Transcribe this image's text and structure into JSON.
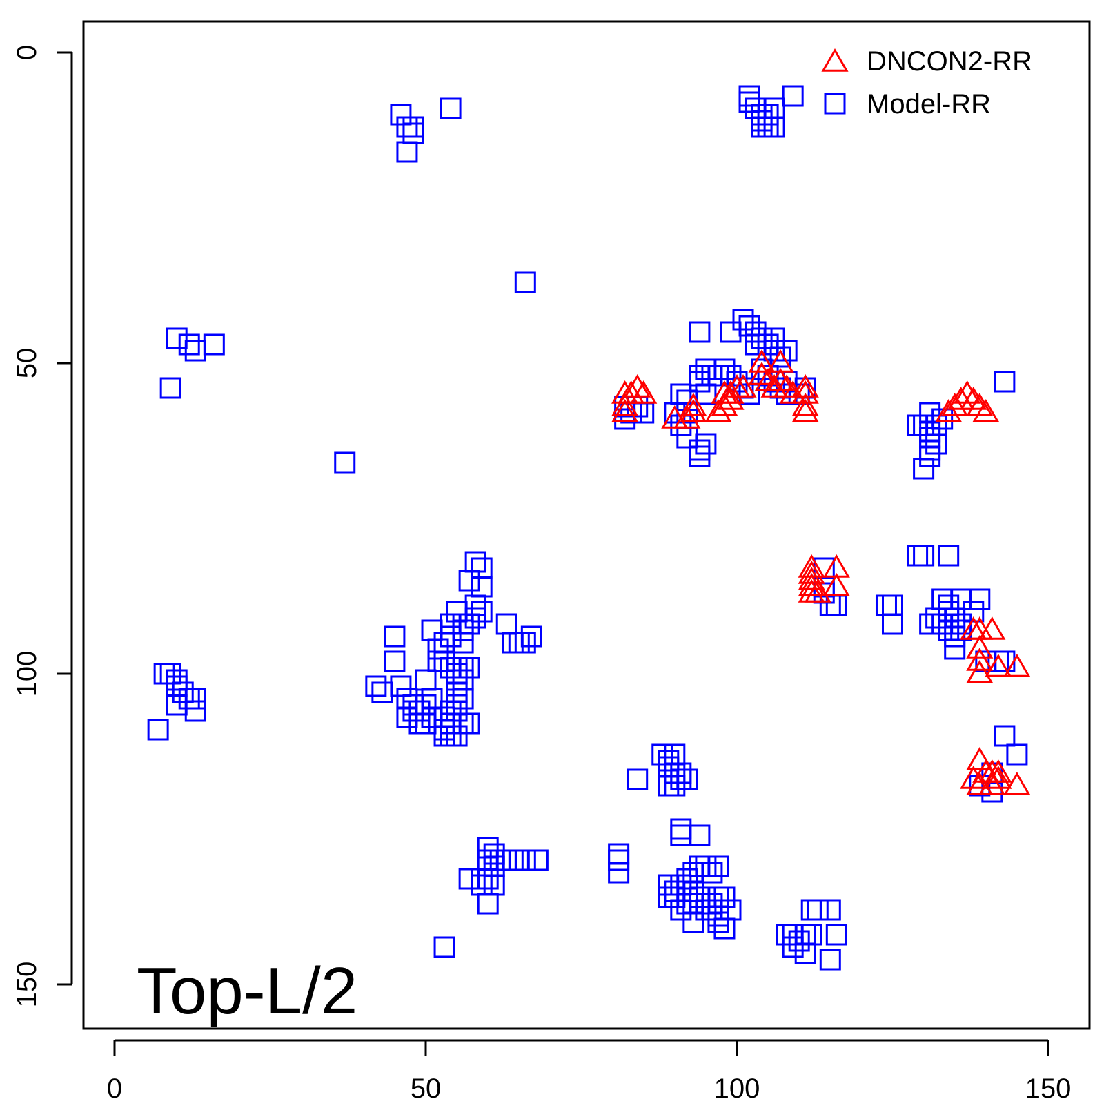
{
  "chart_data": {
    "type": "scatter",
    "title": "",
    "xlabel": "",
    "ylabel": "",
    "xlim": [
      -5,
      157
    ],
    "ylim": [
      -5,
      157
    ],
    "y_axis_inverted": true,
    "grid": false,
    "legend_position": "top-right",
    "x_ticks": [
      "0",
      "50",
      "100",
      "150"
    ],
    "y_ticks": [
      "0",
      "50",
      "100",
      "150"
    ],
    "annotation": "Top-L/2",
    "colors": {
      "dncon": "#ff0000",
      "model": "#0000ff"
    },
    "series": [
      {
        "name": "DNCON2-RR",
        "marker": "triangle",
        "color": "#ff0000",
        "points": [
          [
            82,
            55
          ],
          [
            83,
            55
          ],
          [
            84,
            54
          ],
          [
            82,
            57
          ],
          [
            85,
            55
          ],
          [
            82,
            58
          ],
          [
            90,
            59
          ],
          [
            93,
            57
          ],
          [
            93,
            58
          ],
          [
            92,
            59
          ],
          [
            97,
            58
          ],
          [
            98,
            57
          ],
          [
            99,
            56
          ],
          [
            100,
            54
          ],
          [
            99,
            55
          ],
          [
            101,
            54
          ],
          [
            98,
            55
          ],
          [
            104,
            50
          ],
          [
            104,
            52
          ],
          [
            105,
            53
          ],
          [
            106,
            54
          ],
          [
            107,
            50
          ],
          [
            107,
            53
          ],
          [
            108,
            54
          ],
          [
            109,
            55
          ],
          [
            111,
            54
          ],
          [
            111,
            55
          ],
          [
            111,
            57
          ],
          [
            111,
            58
          ],
          [
            134,
            58
          ],
          [
            135,
            57
          ],
          [
            136,
            56
          ],
          [
            137,
            55
          ],
          [
            138,
            56
          ],
          [
            139,
            57
          ],
          [
            140,
            58
          ],
          [
            112,
            83
          ],
          [
            112,
            84
          ],
          [
            112,
            85
          ],
          [
            112,
            86
          ],
          [
            112,
            87
          ],
          [
            113,
            87
          ],
          [
            116,
            83
          ],
          [
            116,
            86
          ],
          [
            138,
            93
          ],
          [
            139,
            93
          ],
          [
            139,
            96
          ],
          [
            139,
            98
          ],
          [
            139,
            100
          ],
          [
            141,
            93
          ],
          [
            142,
            99
          ],
          [
            145,
            99
          ],
          [
            138,
            117
          ],
          [
            139,
            118
          ],
          [
            139,
            114
          ],
          [
            140,
            116
          ],
          [
            141,
            116
          ],
          [
            141,
            118
          ],
          [
            142,
            117
          ],
          [
            142,
            116
          ],
          [
            145,
            118
          ]
        ]
      },
      {
        "name": "Model-RR",
        "marker": "square",
        "color": "#0000ff",
        "points": [
          [
            46,
            10
          ],
          [
            47,
            12
          ],
          [
            48,
            12
          ],
          [
            48,
            13
          ],
          [
            47,
            16
          ],
          [
            54,
            9
          ],
          [
            102,
            7
          ],
          [
            102,
            8
          ],
          [
            103,
            9
          ],
          [
            104,
            10
          ],
          [
            104,
            11
          ],
          [
            105,
            10
          ],
          [
            105,
            12
          ],
          [
            106,
            9
          ],
          [
            106,
            12
          ],
          [
            104,
            12
          ],
          [
            109,
            7
          ],
          [
            66,
            37
          ],
          [
            10,
            46
          ],
          [
            12,
            47
          ],
          [
            13,
            48
          ],
          [
            16,
            47
          ],
          [
            9,
            54
          ],
          [
            37,
            66
          ],
          [
            101,
            43
          ],
          [
            102,
            44
          ],
          [
            103,
            45
          ],
          [
            104,
            46
          ],
          [
            105,
            47
          ],
          [
            106,
            48
          ],
          [
            107,
            49
          ],
          [
            103,
            47
          ],
          [
            106,
            46
          ],
          [
            108,
            48
          ],
          [
            94,
            45
          ],
          [
            99,
            45
          ],
          [
            94,
            52
          ],
          [
            95,
            51
          ],
          [
            96,
            52
          ],
          [
            97,
            52
          ],
          [
            98,
            51
          ],
          [
            99,
            52
          ],
          [
            100,
            53
          ],
          [
            101,
            54
          ],
          [
            102,
            55
          ],
          [
            94,
            53
          ],
          [
            95,
            55
          ],
          [
            92,
            56
          ],
          [
            91,
            55
          ],
          [
            92,
            58
          ],
          [
            90,
            58
          ],
          [
            91,
            60
          ],
          [
            92,
            62
          ],
          [
            94,
            64
          ],
          [
            94,
            65
          ],
          [
            95,
            63
          ],
          [
            104,
            51
          ],
          [
            105,
            52
          ],
          [
            106,
            53
          ],
          [
            107,
            54
          ],
          [
            108,
            55
          ],
          [
            108,
            53
          ],
          [
            110,
            55
          ],
          [
            111,
            54
          ],
          [
            82,
            57
          ],
          [
            83,
            58
          ],
          [
            84,
            57
          ],
          [
            82,
            59
          ],
          [
            85,
            58
          ],
          [
            131,
            58
          ],
          [
            129,
            60
          ],
          [
            130,
            60
          ],
          [
            131,
            61
          ],
          [
            131,
            62
          ],
          [
            132,
            63
          ],
          [
            131,
            64
          ],
          [
            131,
            65
          ],
          [
            130,
            67
          ],
          [
            132,
            60
          ],
          [
            133,
            59
          ],
          [
            143,
            53
          ],
          [
            58,
            82
          ],
          [
            59,
            83
          ],
          [
            57,
            85
          ],
          [
            59,
            86
          ],
          [
            58,
            89
          ],
          [
            59,
            90
          ],
          [
            58,
            91
          ],
          [
            57,
            92
          ],
          [
            56,
            92
          ],
          [
            56,
            93
          ],
          [
            56,
            95
          ],
          [
            55,
            90
          ],
          [
            54,
            92
          ],
          [
            54,
            94
          ],
          [
            51,
            93
          ],
          [
            53,
            95
          ],
          [
            52,
            96
          ],
          [
            52,
            98
          ],
          [
            53,
            98
          ],
          [
            54,
            99
          ],
          [
            55,
            99
          ],
          [
            56,
            99
          ],
          [
            55,
            101
          ],
          [
            56,
            101
          ],
          [
            57,
            99
          ],
          [
            55,
            100
          ],
          [
            55,
            103
          ],
          [
            45,
            94
          ],
          [
            45,
            98
          ],
          [
            42,
            102
          ],
          [
            43,
            103
          ],
          [
            46,
            102
          ],
          [
            47,
            104
          ],
          [
            48,
            105
          ],
          [
            48,
            106
          ],
          [
            49,
            106
          ],
          [
            47,
            107
          ],
          [
            49,
            108
          ],
          [
            50,
            105
          ],
          [
            50,
            101
          ],
          [
            51,
            104
          ],
          [
            50,
            108
          ],
          [
            51,
            107
          ],
          [
            53,
            107
          ],
          [
            54,
            106
          ],
          [
            55,
            105
          ],
          [
            56,
            104
          ],
          [
            55,
            106
          ],
          [
            54,
            108
          ],
          [
            53,
            109
          ],
          [
            53,
            110
          ],
          [
            54,
            110
          ],
          [
            55,
            110
          ],
          [
            56,
            108
          ],
          [
            57,
            108
          ],
          [
            63,
            92
          ],
          [
            64,
            95
          ],
          [
            65,
            95
          ],
          [
            66,
            95
          ],
          [
            67,
            94
          ],
          [
            8,
            100
          ],
          [
            9,
            100
          ],
          [
            10,
            101
          ],
          [
            10,
            102
          ],
          [
            11,
            103
          ],
          [
            12,
            104
          ],
          [
            13,
            104
          ],
          [
            10,
            105
          ],
          [
            13,
            106
          ],
          [
            7,
            109
          ],
          [
            129,
            81
          ],
          [
            130,
            81
          ],
          [
            134,
            81
          ],
          [
            114,
            83
          ],
          [
            114,
            86
          ],
          [
            114,
            87
          ],
          [
            115,
            89
          ],
          [
            116,
            89
          ],
          [
            124,
            89
          ],
          [
            125,
            89
          ],
          [
            125,
            92
          ],
          [
            133,
            88
          ],
          [
            134,
            89
          ],
          [
            134,
            90
          ],
          [
            135,
            91
          ],
          [
            136,
            92
          ],
          [
            133,
            92
          ],
          [
            134,
            93
          ],
          [
            135,
            94
          ],
          [
            135,
            96
          ],
          [
            132,
            91
          ],
          [
            131,
            92
          ],
          [
            136,
            88
          ],
          [
            136,
            93
          ],
          [
            138,
            90
          ],
          [
            139,
            88
          ],
          [
            140,
            98
          ],
          [
            142,
            98
          ],
          [
            143,
            98
          ],
          [
            143,
            110
          ],
          [
            145,
            113
          ],
          [
            141,
            116
          ],
          [
            141,
            119
          ],
          [
            139,
            118
          ],
          [
            88,
            113
          ],
          [
            89,
            114
          ],
          [
            90,
            113
          ],
          [
            89,
            115
          ],
          [
            90,
            116
          ],
          [
            91,
            117
          ],
          [
            89,
            118
          ],
          [
            90,
            118
          ],
          [
            91,
            116
          ],
          [
            92,
            117
          ],
          [
            84,
            117
          ],
          [
            91,
            125
          ],
          [
            91,
            126
          ],
          [
            94,
            126
          ],
          [
            81,
            129
          ],
          [
            81,
            130
          ],
          [
            81,
            132
          ],
          [
            91,
            134
          ],
          [
            92,
            133
          ],
          [
            93,
            132
          ],
          [
            94,
            131
          ],
          [
            95,
            131
          ],
          [
            96,
            132
          ],
          [
            97,
            131
          ],
          [
            92,
            135
          ],
          [
            93,
            135
          ],
          [
            94,
            136
          ],
          [
            92,
            137
          ],
          [
            93,
            137
          ],
          [
            94,
            137
          ],
          [
            95,
            138
          ],
          [
            96,
            137
          ],
          [
            97,
            136
          ],
          [
            98,
            136
          ],
          [
            96,
            138
          ],
          [
            97,
            139
          ],
          [
            97,
            140
          ],
          [
            98,
            141
          ],
          [
            99,
            138
          ],
          [
            89,
            134
          ],
          [
            90,
            135
          ],
          [
            89,
            136
          ],
          [
            90,
            136
          ],
          [
            91,
            138
          ],
          [
            93,
            140
          ],
          [
            60,
            128
          ],
          [
            61,
            129
          ],
          [
            60,
            130
          ],
          [
            61,
            131
          ],
          [
            62,
            130
          ],
          [
            63,
            130
          ],
          [
            64,
            130
          ],
          [
            65,
            130
          ],
          [
            66,
            130
          ],
          [
            68,
            130
          ],
          [
            57,
            133
          ],
          [
            59,
            133
          ],
          [
            60,
            133
          ],
          [
            59,
            134
          ],
          [
            61,
            134
          ],
          [
            60,
            137
          ],
          [
            53,
            144
          ],
          [
            112,
            138
          ],
          [
            113,
            138
          ],
          [
            115,
            138
          ],
          [
            116,
            142
          ],
          [
            108,
            142
          ],
          [
            109,
            142
          ],
          [
            110,
            143
          ],
          [
            111,
            142
          ],
          [
            112,
            142
          ],
          [
            109,
            144
          ],
          [
            111,
            145
          ],
          [
            115,
            146
          ]
        ]
      }
    ]
  }
}
